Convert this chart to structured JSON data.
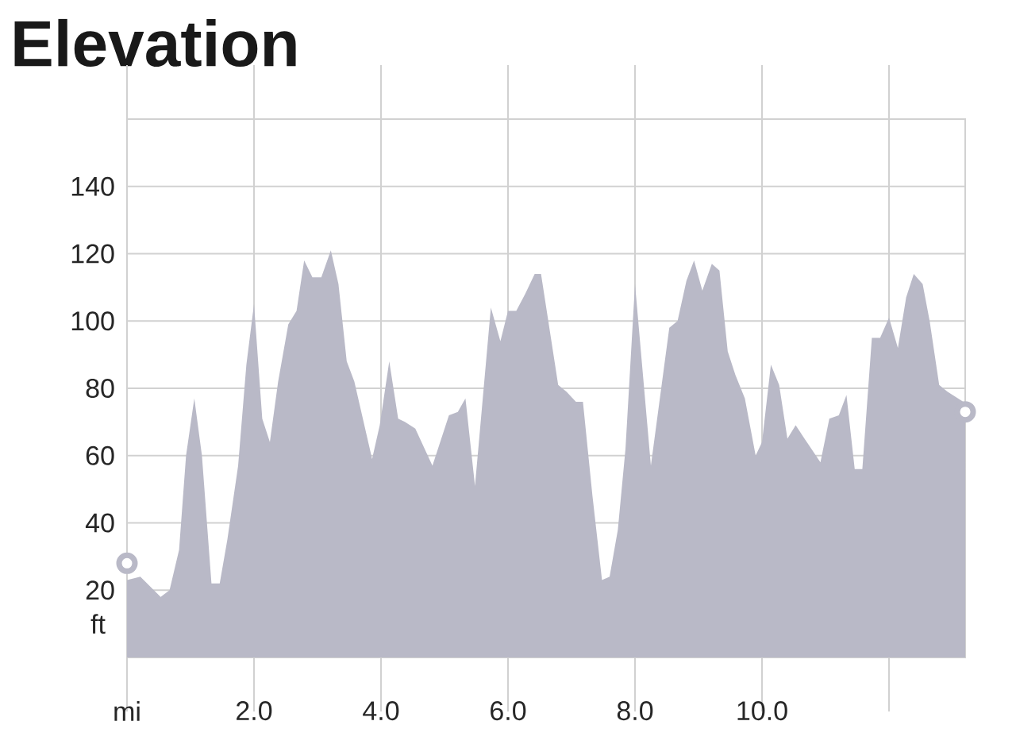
{
  "chart_data": {
    "type": "area",
    "title": "Elevation",
    "ylabel": "ft",
    "xlim": [
      0,
      13.2
    ],
    "ylim": [
      0,
      160
    ],
    "xticks": [
      {
        "value": 0,
        "label": "mi"
      },
      {
        "value": 2,
        "label": "2.0"
      },
      {
        "value": 4,
        "label": "4.0"
      },
      {
        "value": 6,
        "label": "6.0"
      },
      {
        "value": 8,
        "label": "8.0"
      },
      {
        "value": 10,
        "label": "10.0"
      },
      {
        "value": 12,
        "label": null
      }
    ],
    "yticks": [
      {
        "value": 0,
        "label": null
      },
      20,
      40,
      60,
      80,
      100,
      120,
      140,
      {
        "value": 160,
        "label": null
      }
    ],
    "grid": true,
    "series": [
      {
        "color": "#b9b9c7",
        "x": [
          0,
          0.21,
          0.53,
          0.67,
          0.82,
          0.93,
          1.06,
          1.18,
          1.33,
          1.46,
          1.58,
          1.75,
          1.88,
          2.0,
          2.13,
          2.25,
          2.38,
          2.54,
          2.67,
          2.79,
          2.92,
          3.06,
          3.21,
          3.33,
          3.46,
          3.58,
          3.86,
          3.98,
          4.13,
          4.27,
          4.38,
          4.54,
          4.81,
          5.07,
          5.21,
          5.33,
          5.48,
          5.73,
          5.88,
          6.0,
          6.13,
          6.27,
          6.42,
          6.52,
          6.79,
          6.92,
          7.07,
          7.18,
          7.33,
          7.48,
          7.6,
          7.73,
          7.85,
          8.0,
          8.25,
          8.54,
          8.67,
          8.81,
          8.93,
          9.06,
          9.21,
          9.33,
          9.46,
          9.58,
          9.73,
          9.9,
          10.0,
          10.14,
          10.27,
          10.4,
          10.53,
          10.67,
          10.92,
          11.06,
          11.21,
          11.33,
          11.46,
          11.58,
          11.73,
          11.86,
          12.0,
          12.14,
          12.27,
          12.39,
          12.53,
          12.64,
          12.79,
          12.92,
          13.17,
          13.2
        ],
        "values": [
          23,
          24,
          18,
          20,
          32,
          60,
          77,
          60,
          22,
          22,
          35,
          57,
          87,
          105,
          71,
          64,
          82,
          99,
          103,
          118,
          113,
          113,
          121,
          111,
          88,
          82,
          59,
          69,
          88,
          71,
          70,
          68,
          57,
          72,
          73,
          77,
          51,
          104,
          94,
          103,
          103,
          108,
          114,
          114,
          81,
          79,
          76,
          76,
          48,
          23,
          24,
          38,
          62,
          111,
          57,
          98,
          100,
          112,
          118,
          109,
          117,
          115,
          91,
          84,
          77,
          60,
          64,
          87,
          81,
          65,
          69,
          65,
          58,
          71,
          72,
          78,
          56,
          56,
          95,
          95,
          101,
          92,
          107,
          114,
          111,
          100,
          81,
          79,
          76,
          72
        ]
      },
      {
        "type": "scatter",
        "color": "#b9b9c7",
        "marker": "circle",
        "x": [
          0,
          13.2
        ],
        "values": [
          28,
          73
        ]
      }
    ]
  }
}
